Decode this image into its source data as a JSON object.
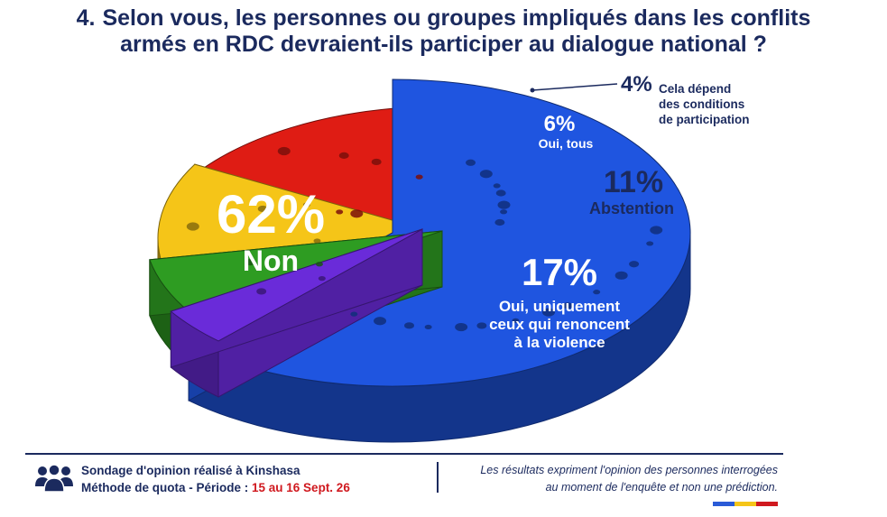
{
  "title": {
    "number": "4.",
    "line1": "Selon vous, les personnes ou groupes impliqués dans les conflits",
    "line2": "armés en RDC devraient-ils participer au dialogue national ?"
  },
  "chart_data": {
    "type": "pie",
    "title": "Selon vous, les personnes ou groupes impliqués dans les conflits armés en RDC devraient-ils participer au dialogue national ?",
    "slices": [
      {
        "key": "non",
        "label": "Non",
        "label_lines": [
          "Non"
        ],
        "value": 62,
        "display": "62%",
        "color": "#1f55e0"
      },
      {
        "key": "conditions",
        "label": "Cela dépend des conditions de participation",
        "label_lines": [
          "Cela dépend",
          "des conditions",
          "de participation"
        ],
        "value": 4,
        "display": "4%",
        "color": "#6a2bd9"
      },
      {
        "key": "oui_tous",
        "label": "Oui, tous",
        "label_lines": [
          "Oui, tous"
        ],
        "value": 6,
        "display": "6%",
        "color": "#2e9c22"
      },
      {
        "key": "abstention",
        "label": "Abstention",
        "label_lines": [
          "Abstention"
        ],
        "value": 11,
        "display": "11%",
        "color": "#f5c518"
      },
      {
        "key": "oui_renoncent",
        "label": "Oui, uniquement ceux qui renoncent à la violence",
        "label_lines": [
          "Oui, uniquement",
          "ceux qui renoncent",
          "à la violence"
        ],
        "value": 17,
        "display": "17%",
        "color": "#df1c14"
      }
    ]
  },
  "footer": {
    "left_line1": "Sondage d'opinion réalisé à Kinshasa",
    "left_line2_prefix": "Méthode de quota - Période : ",
    "left_line2_period": "15 au 16 Sept. 26",
    "right_line1": "Les résultats expriment l'opinion des personnes interrogées",
    "right_line2": "au moment de l'enquête et non une prédiction.",
    "flag_colors": [
      "#2a5bd7",
      "#f5c518",
      "#d0191f"
    ],
    "people_icon": "people-group-icon"
  }
}
